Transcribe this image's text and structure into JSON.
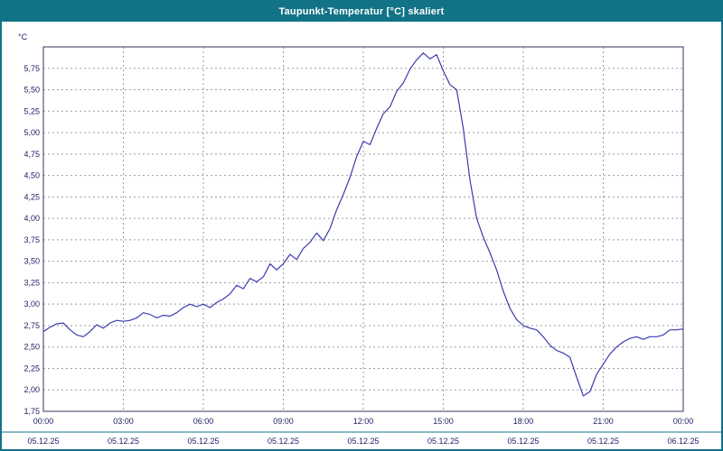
{
  "window": {
    "title": "Taupunkt-Temperatur [°C] skaliert"
  },
  "colors": {
    "frame": "#127387",
    "titlebar_bg": "#127387",
    "titlebar_fg": "#ffffff",
    "plot_border": "#33335f",
    "grid": "#9b9b9b",
    "line": "#3b3bb0",
    "label": "#1d1d66",
    "separator": "#127387",
    "background": "#ffffff"
  },
  "chart_data": {
    "type": "line",
    "title": "Taupunkt-Temperatur [°C] skaliert",
    "ylabel": "°C",
    "xlabel": "",
    "grid": "dashed",
    "legend": "none",
    "ylim": [
      1.75,
      6.0
    ],
    "ytick_values": [
      1.75,
      2.0,
      2.25,
      2.5,
      2.75,
      3.0,
      3.25,
      3.5,
      3.75,
      4.0,
      4.25,
      4.5,
      4.75,
      5.0,
      5.25,
      5.5,
      5.75
    ],
    "ytick_labels": [
      "1,75",
      "2,00",
      "2,25",
      "2,50",
      "2,75",
      "3,00",
      "3,25",
      "3,50",
      "3,75",
      "4,00",
      "4,25",
      "4,50",
      "4,75",
      "5,00",
      "5,25",
      "5,50",
      "5,75"
    ],
    "xlim_hours": [
      0,
      24
    ],
    "xtick_hours": [
      0,
      3,
      6,
      9,
      12,
      15,
      18,
      21,
      24
    ],
    "xtick_labels": [
      "00:00",
      "03:00",
      "06:00",
      "09:00",
      "12:00",
      "15:00",
      "18:00",
      "21:00",
      "00:00"
    ],
    "xdate_labels": [
      "05.12.25",
      "05.12.25",
      "05.12.25",
      "05.12.25",
      "05.12.25",
      "05.12.25",
      "05.12.25",
      "05.12.25",
      "06.12.25"
    ],
    "series": [
      {
        "name": "Taupunkt-Temperatur",
        "x_start_hour": 0,
        "x_step_hours": 0.25,
        "values": [
          2.68,
          2.73,
          2.77,
          2.78,
          2.7,
          2.64,
          2.62,
          2.68,
          2.76,
          2.72,
          2.78,
          2.81,
          2.8,
          2.81,
          2.84,
          2.9,
          2.88,
          2.84,
          2.87,
          2.86,
          2.9,
          2.96,
          3.0,
          2.97,
          3.0,
          2.96,
          3.02,
          3.06,
          3.12,
          3.22,
          3.18,
          3.3,
          3.26,
          3.32,
          3.47,
          3.4,
          3.47,
          3.58,
          3.52,
          3.65,
          3.72,
          3.83,
          3.74,
          3.88,
          4.1,
          4.28,
          4.48,
          4.72,
          4.9,
          4.86,
          5.05,
          5.22,
          5.3,
          5.48,
          5.58,
          5.74,
          5.85,
          5.93,
          5.86,
          5.91,
          5.72,
          5.56,
          5.5,
          5.05,
          4.45,
          4.0,
          3.78,
          3.6,
          3.4,
          3.15,
          2.95,
          2.82,
          2.75,
          2.72,
          2.7,
          2.62,
          2.52,
          2.46,
          2.43,
          2.38,
          2.15,
          1.93,
          1.98,
          2.18,
          2.3,
          2.42,
          2.5,
          2.56,
          2.6,
          2.62,
          2.59,
          2.62,
          2.62,
          2.64,
          2.7,
          2.7,
          2.71
        ]
      }
    ]
  }
}
